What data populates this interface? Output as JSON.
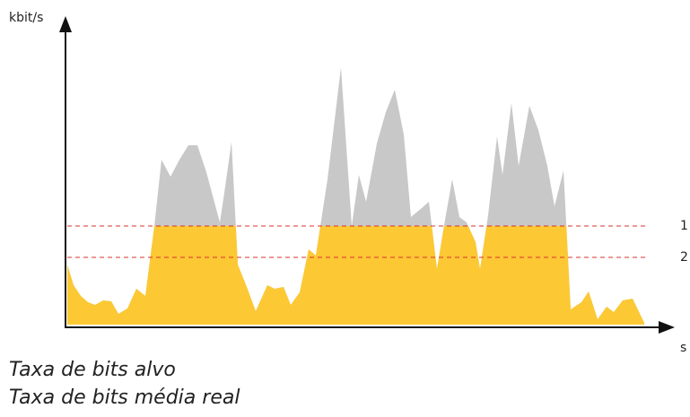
{
  "axes": {
    "y_label": "kbit/s",
    "x_label": "s"
  },
  "levels": {
    "line_1": "1",
    "line_2": "2"
  },
  "captions": [
    "Taxa de bits alvo",
    "Taxa de bits média real"
  ]
}
